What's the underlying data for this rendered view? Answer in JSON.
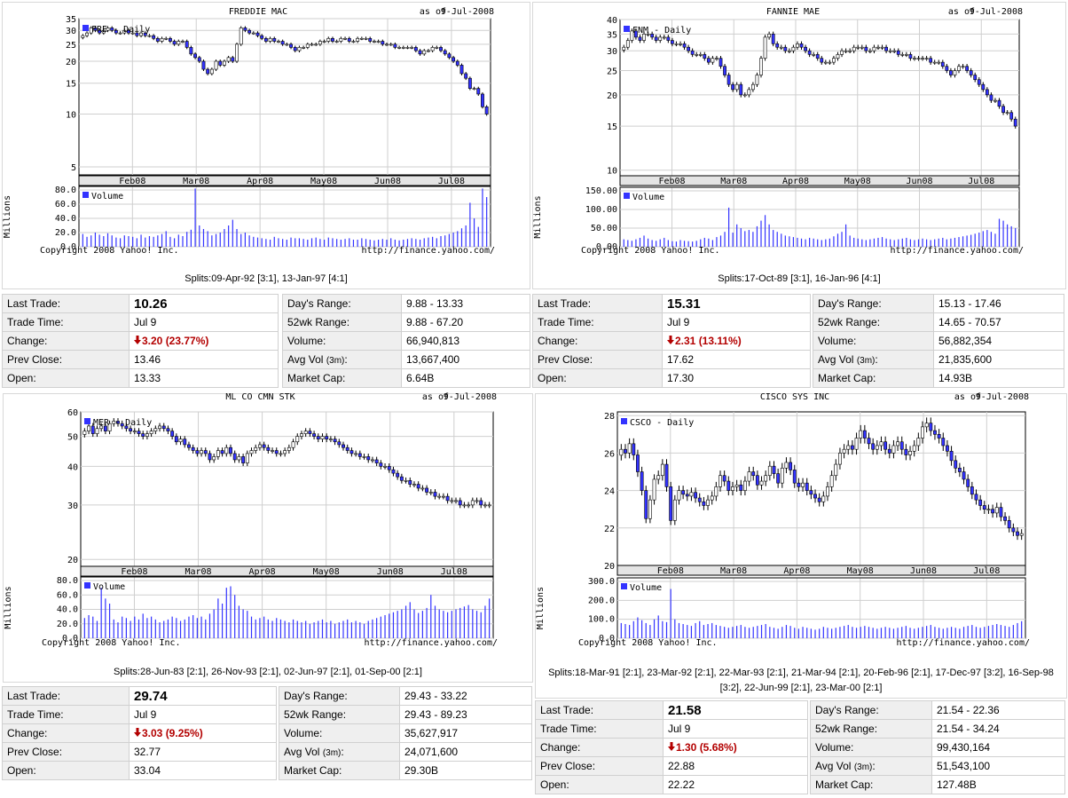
{
  "copyright": "Copyright 2008 Yahoo! Inc.",
  "source_url": "http://finance.yahoo.com/",
  "as_of_label": "as of",
  "colors": {
    "up": "#ffffff",
    "down": "#3333ff",
    "grid": "#cfcfcf",
    "volume": "#3333ff",
    "change_down": "#b30000"
  },
  "icons": {
    "change": "down-arrow-icon"
  },
  "labels": {
    "last_trade": "Last Trade:",
    "trade_time": "Trade Time:",
    "change": "Change:",
    "prev_close": "Prev Close:",
    "open": "Open:",
    "days_range": "Day's Range:",
    "wk52_range": "52wk Range:",
    "volume": "Volume:",
    "avg_vol": "Avg Vol",
    "avg_vol_unit": "(3m)",
    "avg_vol_colon": ":",
    "market_cap": "Market Cap:"
  },
  "stocks": [
    {
      "id": "fre",
      "chart_data": {
        "type": "candlestick",
        "title": "FREDDIE MAC",
        "date": "9-Jul-2008",
        "legend": "FRE - Daily",
        "y_scale": "log",
        "ylim": [
          4.5,
          35
        ],
        "yticks": [
          "35",
          "30",
          "25",
          "20",
          "15",
          "10",
          "5"
        ],
        "x_ticks": [
          "Feb08",
          "Mar08",
          "Apr08",
          "May08",
          "Jun08",
          "Jul08"
        ],
        "closes": [
          28,
          29,
          31,
          30,
          29,
          30,
          31,
          30,
          29,
          29,
          30,
          29,
          29,
          28,
          29,
          28,
          28,
          27,
          26,
          27,
          27,
          26,
          25,
          26,
          26,
          24,
          22,
          21,
          20,
          18,
          17,
          18,
          20,
          19,
          20,
          21,
          20,
          25,
          31,
          30,
          29,
          29,
          28,
          27,
          26,
          27,
          26,
          26,
          25,
          25,
          24,
          23,
          24,
          24,
          25,
          25,
          25,
          26,
          26,
          27,
          26,
          26,
          27,
          27,
          26,
          26,
          27,
          27,
          27,
          26,
          26,
          26,
          25,
          25,
          25,
          24,
          24,
          24,
          24,
          24,
          23,
          22,
          23,
          23,
          24,
          24,
          23,
          22,
          21,
          20,
          19,
          17,
          16,
          14,
          14,
          13,
          11,
          10
        ],
        "volume": {
          "label": "Volume",
          "unit_label": "Millions",
          "ylim": [
            0,
            80
          ],
          "yticks": [
            "80.0",
            "60.0",
            "40.0",
            "20.0",
            "0.0"
          ],
          "values": [
            18,
            14,
            16,
            20,
            17,
            15,
            19,
            16,
            13,
            12,
            16,
            15,
            14,
            12,
            17,
            13,
            15,
            14,
            16,
            18,
            22,
            14,
            12,
            17,
            15,
            21,
            24,
            82,
            30,
            25,
            22,
            16,
            18,
            20,
            25,
            30,
            38,
            25,
            18,
            20,
            16,
            14,
            13,
            12,
            11,
            10,
            14,
            12,
            11,
            10,
            13,
            12,
            12,
            11,
            10,
            12,
            13,
            11,
            10,
            13,
            12,
            11,
            10,
            11,
            12,
            10,
            10,
            12,
            11,
            10,
            9,
            10,
            11,
            10,
            12,
            10,
            9,
            10,
            11,
            12,
            11,
            10,
            12,
            13,
            14,
            12,
            15,
            16,
            18,
            20,
            22,
            26,
            30,
            62,
            40,
            28,
            82,
            70
          ]
        }
      },
      "splits": "Splits:09-Apr-92 [3:1], 13-Jan-97 [4:1]",
      "quote": {
        "last_trade": "10.26",
        "trade_time": "Jul 9",
        "change": "3.20 (23.77%)",
        "prev_close": "13.46",
        "open": "13.33",
        "days_range": "9.88 - 13.33",
        "wk52_range": "9.88 - 67.20",
        "volume": "66,940,813",
        "avg_vol": "13,667,400",
        "market_cap": "6.64B"
      }
    },
    {
      "id": "fnm",
      "chart_data": {
        "type": "candlestick",
        "title": "FANNIE MAE",
        "date": "9-Jul-2008",
        "legend": "FNM - Daily",
        "y_scale": "log",
        "ylim": [
          9.5,
          40
        ],
        "yticks": [
          "40",
          "35",
          "30",
          "25",
          "20",
          "15",
          "10"
        ],
        "x_ticks": [
          "Feb08",
          "Mar08",
          "Apr08",
          "May08",
          "Jun08",
          "Jul08"
        ],
        "closes": [
          31,
          33,
          36,
          34,
          33,
          35,
          35,
          34,
          33,
          34,
          34,
          33,
          32,
          32,
          32,
          31,
          30,
          29,
          29,
          29,
          28,
          27,
          28,
          28,
          26,
          24,
          22,
          21,
          22,
          20,
          20,
          21,
          22,
          24,
          28,
          34,
          35,
          32,
          31,
          31,
          30,
          30,
          31,
          32,
          31,
          30,
          29,
          29,
          28,
          27,
          27,
          27,
          28,
          29,
          30,
          30,
          30,
          31,
          31,
          31,
          30,
          30,
          31,
          31,
          31,
          30,
          30,
          30,
          29,
          29,
          29,
          28,
          28,
          28,
          28,
          28,
          27,
          27,
          27,
          26,
          25,
          24,
          25,
          26,
          26,
          25,
          24,
          23,
          22,
          21,
          20,
          19,
          19,
          18,
          17,
          17,
          16,
          15
        ],
        "volume": {
          "label": "Volume",
          "unit_label": "Millions",
          "ylim": [
            0,
            150
          ],
          "yticks": [
            "150.00",
            "100.00",
            "50.00",
            "0.00"
          ],
          "values": [
            20,
            18,
            16,
            20,
            24,
            30,
            22,
            18,
            16,
            20,
            24,
            18,
            15,
            14,
            18,
            16,
            15,
            14,
            16,
            20,
            24,
            22,
            18,
            26,
            30,
            40,
            105,
            38,
            60,
            50,
            42,
            45,
            40,
            55,
            70,
            85,
            60,
            45,
            40,
            35,
            30,
            28,
            26,
            24,
            22,
            20,
            24,
            22,
            20,
            18,
            20,
            22,
            28,
            35,
            40,
            60,
            30,
            24,
            22,
            20,
            18,
            20,
            22,
            24,
            26,
            22,
            20,
            18,
            20,
            22,
            24,
            20,
            18,
            20,
            22,
            20,
            18,
            20,
            22,
            24,
            20,
            22,
            24,
            26,
            28,
            30,
            32,
            35,
            38,
            42,
            45,
            40,
            35,
            75,
            70,
            60,
            55,
            50
          ]
        }
      },
      "splits": "Splits:17-Oct-89 [3:1], 16-Jan-96 [4:1]",
      "quote": {
        "last_trade": "15.31",
        "trade_time": "Jul 9",
        "change": "2.31 (13.11%)",
        "prev_close": "17.62",
        "open": "17.30",
        "days_range": "15.13 - 17.46",
        "wk52_range": "14.65 - 70.57",
        "volume": "56,882,354",
        "avg_vol": "21,835,600",
        "market_cap": "14.93B"
      }
    },
    {
      "id": "mer",
      "chart_data": {
        "type": "candlestick",
        "title": "ML CO CMN STK",
        "date": "9-Jul-2008",
        "legend": "MER - Daily",
        "y_scale": "log",
        "ylim": [
          19,
          60
        ],
        "yticks": [
          "60",
          "50",
          "40",
          "30",
          "20"
        ],
        "x_ticks": [
          "Feb08",
          "Mar08",
          "Apr08",
          "May08",
          "Jun08",
          "Jul08"
        ],
        "closes": [
          52,
          54,
          51,
          53,
          54,
          52,
          55,
          56,
          55,
          54,
          53,
          52,
          52,
          51,
          50,
          51,
          52,
          53,
          54,
          53,
          52,
          50,
          48,
          49,
          47,
          46,
          45,
          44,
          45,
          44,
          42,
          43,
          45,
          44,
          46,
          44,
          42,
          43,
          41,
          44,
          45,
          46,
          47,
          46,
          45,
          45,
          44,
          44,
          45,
          46,
          48,
          50,
          51,
          52,
          51,
          50,
          49,
          50,
          49,
          49,
          48,
          47,
          46,
          45,
          44,
          44,
          43,
          43,
          42,
          42,
          41,
          40,
          40,
          39,
          38,
          37,
          36,
          36,
          35,
          35,
          34,
          34,
          33,
          33,
          32,
          32,
          32,
          31,
          31,
          31,
          30,
          30,
          30,
          31,
          31,
          30,
          30,
          30
        ],
        "volume": {
          "label": "Volume",
          "unit_label": "Millions",
          "ylim": [
            0,
            80
          ],
          "yticks": [
            "80.0",
            "60.0",
            "40.0",
            "20.0",
            "0.0"
          ],
          "values": [
            28,
            32,
            30,
            24,
            70,
            55,
            48,
            26,
            22,
            30,
            28,
            24,
            30,
            26,
            34,
            28,
            30,
            26,
            22,
            24,
            26,
            30,
            28,
            24,
            26,
            30,
            32,
            28,
            30,
            26,
            34,
            40,
            55,
            48,
            70,
            72,
            60,
            45,
            40,
            38,
            30,
            26,
            28,
            30,
            26,
            24,
            28,
            26,
            24,
            22,
            26,
            24,
            22,
            24,
            20,
            22,
            24,
            26,
            22,
            24,
            20,
            22,
            24,
            26,
            22,
            24,
            22,
            20,
            24,
            26,
            28,
            30,
            32,
            34,
            36,
            38,
            40,
            45,
            50,
            40,
            35,
            38,
            42,
            60,
            45,
            40,
            38,
            36,
            38,
            40,
            42,
            44,
            46,
            40,
            38,
            36,
            45,
            55
          ]
        }
      },
      "splits": "Splits:28-Jun-83 [2:1], 26-Nov-93 [2:1], 02-Jun-97 [2:1], 01-Sep-00 [2:1]",
      "quote": {
        "last_trade": "29.74",
        "trade_time": "Jul 9",
        "change": "3.03 (9.25%)",
        "prev_close": "32.77",
        "open": "33.04",
        "days_range": "29.43 - 33.22",
        "wk52_range": "29.43 - 89.23",
        "volume": "35,627,917",
        "avg_vol": "24,071,600",
        "market_cap": "29.30B"
      }
    },
    {
      "id": "csco",
      "chart_data": {
        "type": "candlestick",
        "title": "CISCO SYS INC",
        "date": "9-Jul-2008",
        "legend": "CSCO - Daily",
        "y_scale": "linear",
        "ylim": [
          20,
          28.2
        ],
        "yticks": [
          "28",
          "26",
          "24",
          "22",
          "20"
        ],
        "x_ticks": [
          "Feb08",
          "Mar08",
          "Apr08",
          "May08",
          "Jun08",
          "Jul08"
        ],
        "closes": [
          26.2,
          26.0,
          26.5,
          25.9,
          25.0,
          24.0,
          22.5,
          23.5,
          24.6,
          24.8,
          25.4,
          24.2,
          22.4,
          23.5,
          24.0,
          23.8,
          23.7,
          23.9,
          23.6,
          23.4,
          23.2,
          23.5,
          23.7,
          24.2,
          24.8,
          24.5,
          24.0,
          24.2,
          24.3,
          24.0,
          24.5,
          25.0,
          24.8,
          24.3,
          24.5,
          24.8,
          25.3,
          24.9,
          24.4,
          25.2,
          25.5,
          25.1,
          24.4,
          24.2,
          24.4,
          24.0,
          23.8,
          23.6,
          23.4,
          23.7,
          24.2,
          24.8,
          25.4,
          26.0,
          26.2,
          26.4,
          26.2,
          26.8,
          27.2,
          26.8,
          26.5,
          26.2,
          26.4,
          26.6,
          26.2,
          26.0,
          26.4,
          26.6,
          26.2,
          25.9,
          26.1,
          26.4,
          26.8,
          27.4,
          27.6,
          27.2,
          27.0,
          26.8,
          26.4,
          26.1,
          25.6,
          25.2,
          25.0,
          24.6,
          24.2,
          23.8,
          23.5,
          23.2,
          23.0,
          23.0,
          22.8,
          23.1,
          22.6,
          22.4,
          22.0,
          21.8,
          21.6,
          21.7
        ],
        "volume": {
          "label": "Volume",
          "unit_label": "Millions",
          "ylim": [
            0,
            300
          ],
          "yticks": [
            "300.0",
            "200.0",
            "100.0",
            "0.0"
          ],
          "values": [
            80,
            75,
            70,
            90,
            110,
            95,
            80,
            70,
            100,
            120,
            90,
            85,
            260,
            100,
            80,
            75,
            70,
            65,
            80,
            90,
            70,
            75,
            80,
            70,
            65,
            60,
            55,
            60,
            65,
            70,
            60,
            55,
            60,
            65,
            70,
            75,
            60,
            55,
            50,
            60,
            70,
            65,
            55,
            50,
            60,
            55,
            50,
            45,
            50,
            60,
            55,
            50,
            55,
            60,
            65,
            70,
            60,
            55,
            60,
            65,
            60,
            55,
            50,
            55,
            60,
            55,
            50,
            55,
            60,
            65,
            55,
            50,
            55,
            60,
            65,
            70,
            60,
            55,
            50,
            55,
            60,
            55,
            50,
            60,
            65,
            70,
            60,
            55,
            60,
            65,
            70,
            75,
            70,
            65,
            60,
            70,
            80,
            90
          ]
        }
      },
      "splits": "Splits:18-Mar-91 [2:1], 23-Mar-92 [2:1], 22-Mar-93 [2:1], 21-Mar-94 [2:1], 20-Feb-96 [2:1], 17-Dec-97 [3:2], 16-Sep-98 [3:2], 22-Jun-99 [2:1], 23-Mar-00 [2:1]",
      "quote": {
        "last_trade": "21.58",
        "trade_time": "Jul 9",
        "change": "1.30 (5.68%)",
        "prev_close": "22.88",
        "open": "22.22",
        "days_range": "21.54 - 22.36",
        "wk52_range": "21.54 - 34.24",
        "volume": "99,430,164",
        "avg_vol": "51,543,100",
        "market_cap": "127.48B"
      }
    }
  ]
}
